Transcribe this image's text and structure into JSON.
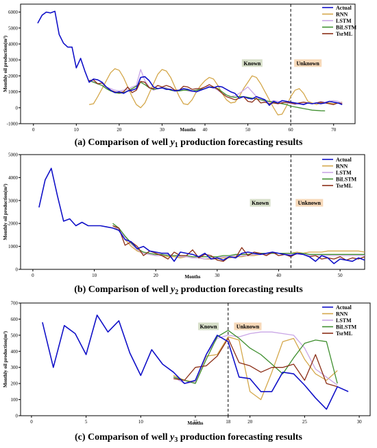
{
  "colors": {
    "Actual": "#1010c8",
    "RNN": "#d4a74a",
    "LSTM": "#c9a6e6",
    "BiLSTM": "#3f8f2f",
    "TsrML": "#8b2e16",
    "known_bg": "#d6dec8",
    "unknown_bg": "#f6d8b8"
  },
  "chart_data": [
    {
      "type": "line",
      "caption_prefix": "(a) Comparison of well ",
      "caption_var": "y",
      "caption_sub": "1",
      "caption_suffix": " production forecasting results",
      "xlabel": "Months",
      "ylabel": "Monthly oil production(m³)",
      "xlim": [
        -3,
        75
      ],
      "ylim": [
        -1000,
        6500
      ],
      "xticks": [
        0,
        10,
        20,
        30,
        40,
        50,
        60,
        70
      ],
      "yticks": [
        -1000,
        0,
        1000,
        2000,
        3000,
        4000,
        5000,
        6000
      ],
      "split_x": 60,
      "split_label": "60",
      "known_label": "Known",
      "unknown_label": "Unknown",
      "known_label_x": 51,
      "unknown_label_x": 64,
      "label_y": 2800,
      "legend_position": "top-right",
      "series": [
        {
          "name": "Actual",
          "x_start": 1,
          "values": [
            5300,
            5800,
            6000,
            5950,
            6050,
            4600,
            4050,
            3800,
            3800,
            2500,
            3100,
            2300,
            1600,
            1800,
            1750,
            1600,
            1300,
            1100,
            950,
            1000,
            900,
            1050,
            1100,
            1200,
            1900,
            1950,
            1700,
            1300,
            1200,
            1250,
            1150,
            1150,
            1050,
            1100,
            1200,
            1150,
            1050,
            1000,
            1100,
            1200,
            1300,
            1250,
            1350,
            1300,
            1150,
            1000,
            900,
            600,
            700,
            600,
            550,
            700,
            600,
            500,
            150,
            400,
            300,
            450,
            400,
            350,
            300,
            250,
            200,
            300,
            250,
            300,
            250,
            300,
            400,
            350,
            300,
            200
          ]
        },
        {
          "name": "RNN",
          "x_start": 13,
          "values": [
            200,
            250,
            700,
            1200,
            1700,
            2200,
            2450,
            2350,
            1900,
            1300,
            700,
            200,
            0,
            300,
            900,
            1500,
            2100,
            2400,
            2300,
            1900,
            1300,
            700,
            250,
            200,
            500,
            1000,
            1400,
            1700,
            1900,
            1800,
            1400,
            900,
            500,
            300,
            350,
            700,
            1200,
            1600,
            2000,
            1900,
            1500,
            1000,
            500,
            0,
            -450,
            -400,
            100,
            700,
            1100,
            1200,
            900,
            400,
            300,
            200,
            300,
            350,
            300,
            250,
            300,
            350
          ]
        },
        {
          "name": "LSTM",
          "x_start": 13,
          "values": [
            1700,
            1650,
            1500,
            1400,
            1300,
            1200,
            1100,
            1050,
            1100,
            1150,
            1300,
            1400,
            2400,
            1700,
            1300,
            1100,
            1200,
            1300,
            1250,
            1150,
            1050,
            1100,
            1150,
            1050,
            1000,
            1100,
            1200,
            1300,
            1350,
            1250,
            1100,
            900,
            800,
            700,
            750,
            900,
            1100,
            1300,
            1000,
            700,
            500,
            400,
            350,
            450,
            400,
            350,
            300,
            250,
            200,
            250,
            250,
            300,
            250,
            300,
            400,
            350,
            400,
            450,
            400,
            300
          ]
        },
        {
          "name": "BiLSTM",
          "x_start": 13,
          "values": [
            1700,
            1600,
            1500,
            1400,
            1200,
            1050,
            950,
            900,
            950,
            1050,
            1200,
            1350,
            1600,
            1450,
            1250,
            1150,
            1200,
            1250,
            1200,
            1100,
            1050,
            1050,
            1100,
            1100,
            1050,
            1100,
            1150,
            1200,
            1300,
            1300,
            1200,
            1000,
            800,
            700,
            650,
            700,
            700,
            650,
            600,
            550,
            500,
            450,
            400,
            350,
            300,
            250,
            200,
            100,
            50,
            0,
            -50,
            -100,
            -150,
            -170,
            -190,
            -200
          ]
        },
        {
          "name": "TsrML",
          "x_start": 13,
          "values": [
            1700,
            1750,
            1500,
            1550,
            1300,
            1100,
            1000,
            950,
            1000,
            1300,
            950,
            1100,
            1650,
            1600,
            1250,
            1200,
            1400,
            1300,
            1400,
            1300,
            1100,
            1100,
            1350,
            1300,
            1150,
            1200,
            1200,
            1300,
            1450,
            1300,
            1150,
            900,
            700,
            600,
            500,
            600,
            700,
            400,
            350,
            600,
            300,
            350,
            250,
            300,
            250,
            300,
            350,
            300,
            250,
            300,
            350,
            300,
            250,
            300,
            350,
            300,
            250,
            200,
            300,
            250
          ]
        }
      ]
    },
    {
      "type": "line",
      "caption_prefix": "(b) Comparison of well ",
      "caption_var": "y",
      "caption_sub": "2",
      "caption_suffix": " production forecasting results",
      "xlabel": "Months",
      "ylabel": "Monthly oil production(m³)",
      "xlim": [
        -2,
        54
      ],
      "ylim": [
        0,
        5000
      ],
      "xticks": [
        0,
        10,
        20,
        30,
        40,
        50
      ],
      "yticks": [
        0,
        1000,
        2000,
        3000,
        4000,
        5000
      ],
      "split_x": 42,
      "split_label": "42",
      "known_label": "Known",
      "unknown_label": "Unknown",
      "known_label_x": 37,
      "unknown_label_x": 45,
      "label_y": 2900,
      "legend_position": "top-right",
      "series": [
        {
          "name": "Actual",
          "x_start": 1,
          "values": [
            2700,
            3900,
            4400,
            3200,
            2100,
            2200,
            1900,
            2050,
            1900,
            1900,
            1900,
            1850,
            1800,
            1700,
            1300,
            1200,
            900,
            1000,
            800,
            750,
            700,
            700,
            350,
            750,
            700,
            650,
            550,
            700,
            450,
            500,
            400,
            550,
            500,
            700,
            750,
            700,
            650,
            700,
            750,
            700,
            650,
            600,
            700,
            650,
            550,
            350,
            600,
            500,
            250,
            450,
            400,
            350,
            500,
            400
          ]
        },
        {
          "name": "RNN",
          "x_start": 13,
          "values": [
            1900,
            1700,
            1300,
            1000,
            800,
            700,
            650,
            600,
            600,
            550,
            550,
            500,
            550,
            500,
            500,
            450,
            450,
            450,
            500,
            500,
            550,
            550,
            600,
            600,
            650,
            650,
            700,
            700,
            700,
            700,
            750,
            700,
            750,
            750,
            750,
            800,
            800,
            800,
            800,
            800,
            800,
            750
          ]
        },
        {
          "name": "LSTM",
          "x_start": 13,
          "values": [
            1900,
            1750,
            1400,
            1100,
            850,
            700,
            650,
            600,
            600,
            650,
            600,
            550,
            550,
            500,
            500,
            450,
            500,
            500,
            550,
            550,
            600,
            600,
            600,
            650,
            650,
            650,
            700,
            700,
            650,
            650,
            650,
            650,
            600,
            600,
            600,
            600,
            600,
            600,
            600,
            600,
            600,
            600
          ]
        },
        {
          "name": "BiLSTM",
          "x_start": 13,
          "values": [
            2000,
            1800,
            1450,
            1150,
            900,
            750,
            700,
            650,
            650,
            600,
            600,
            600,
            600,
            550,
            550,
            550,
            550,
            550,
            600,
            600,
            650,
            650,
            650,
            700,
            700,
            700,
            700,
            700,
            700,
            700,
            700,
            700,
            650,
            650,
            650,
            650,
            650,
            650,
            650,
            650,
            650,
            650
          ]
        },
        {
          "name": "TsrML",
          "x_start": 13,
          "values": [
            1900,
            1800,
            1050,
            1200,
            1000,
            600,
            800,
            700,
            600,
            450,
            750,
            600,
            600,
            850,
            500,
            650,
            600,
            400,
            350,
            550,
            500,
            950,
            600,
            750,
            700,
            600,
            750,
            600,
            650,
            550,
            700,
            650,
            550,
            600,
            450,
            500,
            450,
            550,
            400,
            500,
            450,
            550
          ]
        }
      ]
    },
    {
      "type": "line",
      "caption_prefix": "(c) Comparison of well ",
      "caption_var": "y",
      "caption_sub": "3",
      "caption_suffix": " production forecasting results",
      "xlabel": "Months",
      "ylabel": "Monthly oil production(m³)",
      "xlim": [
        -1,
        31
      ],
      "ylim": [
        0,
        700
      ],
      "xticks": [
        0,
        5,
        10,
        15,
        18,
        20,
        25,
        30
      ],
      "yticks": [
        0,
        100,
        200,
        300,
        400,
        500,
        600,
        700
      ],
      "split_x": 18,
      "split_label": "18",
      "known_label": "Known",
      "unknown_label": "Unknown",
      "known_label_x": 16.2,
      "unknown_label_x": 19.8,
      "label_y": 555,
      "legend_position": "top-right",
      "series": [
        {
          "name": "Actual",
          "x_start": 1,
          "values": [
            580,
            300,
            560,
            510,
            380,
            625,
            520,
            590,
            390,
            250,
            410,
            320,
            270,
            200,
            220,
            380,
            500,
            460,
            240,
            230,
            150,
            150,
            270,
            260,
            190,
            110,
            40,
            180,
            150
          ]
        },
        {
          "name": "RNN",
          "x_start": 13,
          "values": [
            250,
            220,
            210,
            370,
            380,
            490,
            470,
            150,
            100,
            270,
            460,
            480,
            350,
            260,
            220,
            280
          ]
        },
        {
          "name": "LSTM",
          "x_start": 13,
          "values": [
            240,
            200,
            210,
            380,
            480,
            500,
            490,
            510,
            520,
            520,
            510,
            500,
            420,
            290,
            240,
            190
          ]
        },
        {
          "name": "BiLSTM",
          "x_start": 13,
          "values": [
            240,
            220,
            200,
            350,
            490,
            530,
            480,
            420,
            380,
            320,
            260,
            360,
            450,
            470,
            460,
            200
          ]
        },
        {
          "name": "TsrML",
          "x_start": 13,
          "values": [
            230,
            220,
            300,
            310,
            370,
            480,
            330,
            310,
            270,
            300,
            300,
            320,
            220,
            380,
            200,
            180
          ]
        }
      ]
    }
  ]
}
